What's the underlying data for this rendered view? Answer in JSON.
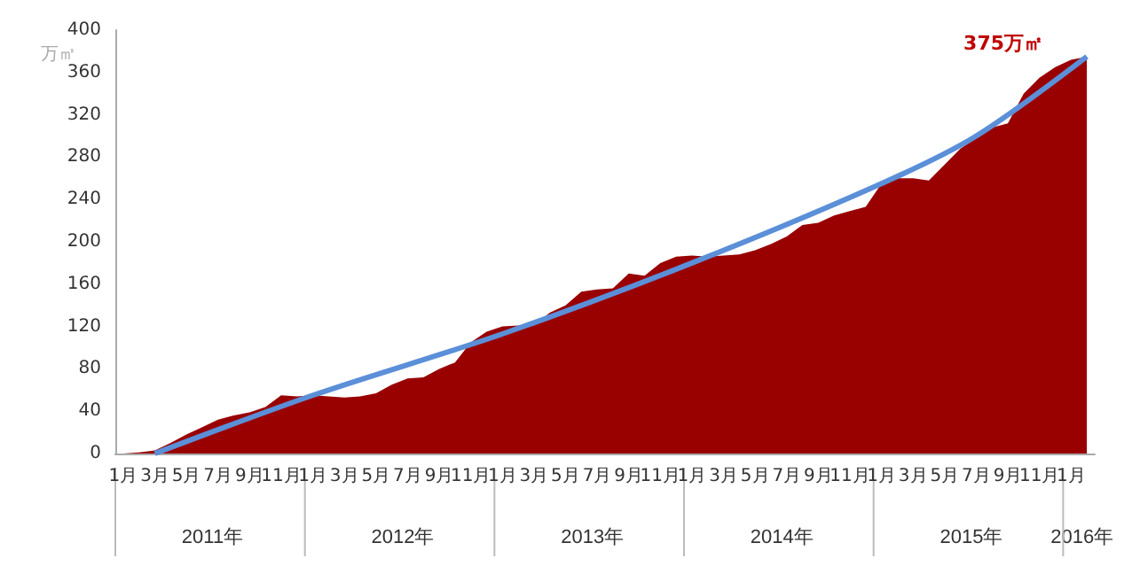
{
  "chart_data": {
    "type": "area",
    "ylabel": "万㎡",
    "categories": [
      "1月",
      null,
      "3月",
      null,
      "5月",
      null,
      "7月",
      null,
      "9月",
      null,
      "11月",
      null,
      "1月",
      null,
      "3月",
      null,
      "5月",
      null,
      "7月",
      null,
      "9月",
      null,
      "11月",
      null,
      "1月",
      null,
      "3月",
      null,
      "5月",
      null,
      "7月",
      null,
      "9月",
      null,
      "11月",
      null,
      "1月",
      null,
      "3月",
      null,
      "5月",
      null,
      "7月",
      null,
      "9月",
      null,
      "11月",
      null,
      "1月",
      null,
      "3月",
      null,
      "5月",
      null,
      "7月",
      null,
      "9月",
      null,
      "11月",
      null,
      "1月",
      null
    ],
    "series": [
      {
        "color": "#990000",
        "values": [
          0,
          1,
          3,
          10,
          18,
          25,
          32,
          36,
          39,
          44,
          55,
          54,
          55,
          54,
          53,
          54,
          57,
          65,
          71,
          72,
          80,
          86,
          105,
          115,
          120,
          121,
          121,
          133,
          140,
          153,
          155,
          156,
          170,
          168,
          180,
          186,
          187,
          186,
          187,
          188,
          192,
          198,
          205,
          216,
          218,
          225,
          229,
          233,
          255,
          260,
          260,
          258,
          273,
          288,
          298,
          308,
          312,
          340,
          355,
          365,
          372,
          375
        ]
      },
      {
        "type": "line",
        "color": "#5b8fd8",
        "values": [
          null,
          null,
          0,
          null,
          null,
          null,
          null,
          null,
          null,
          null,
          null,
          null,
          55,
          null,
          null,
          null,
          null,
          null,
          null,
          null,
          null,
          null,
          null,
          null,
          113,
          null,
          null,
          null,
          null,
          null,
          null,
          null,
          null,
          null,
          null,
          null,
          180,
          null,
          null,
          null,
          null,
          null,
          null,
          null,
          null,
          null,
          null,
          null,
          255,
          null,
          null,
          null,
          null,
          null,
          300,
          null,
          null,
          null,
          null,
          null,
          null,
          375
        ]
      }
    ],
    "ylim": [
      0,
      400
    ],
    "yticks": [
      0,
      40,
      80,
      120,
      160,
      200,
      240,
      280,
      320,
      360,
      400
    ],
    "grid": false,
    "annotations": [
      "375万㎡",
      "2011年",
      "2012年",
      "2013年",
      "2014年",
      "2015年",
      "2016年"
    ]
  }
}
